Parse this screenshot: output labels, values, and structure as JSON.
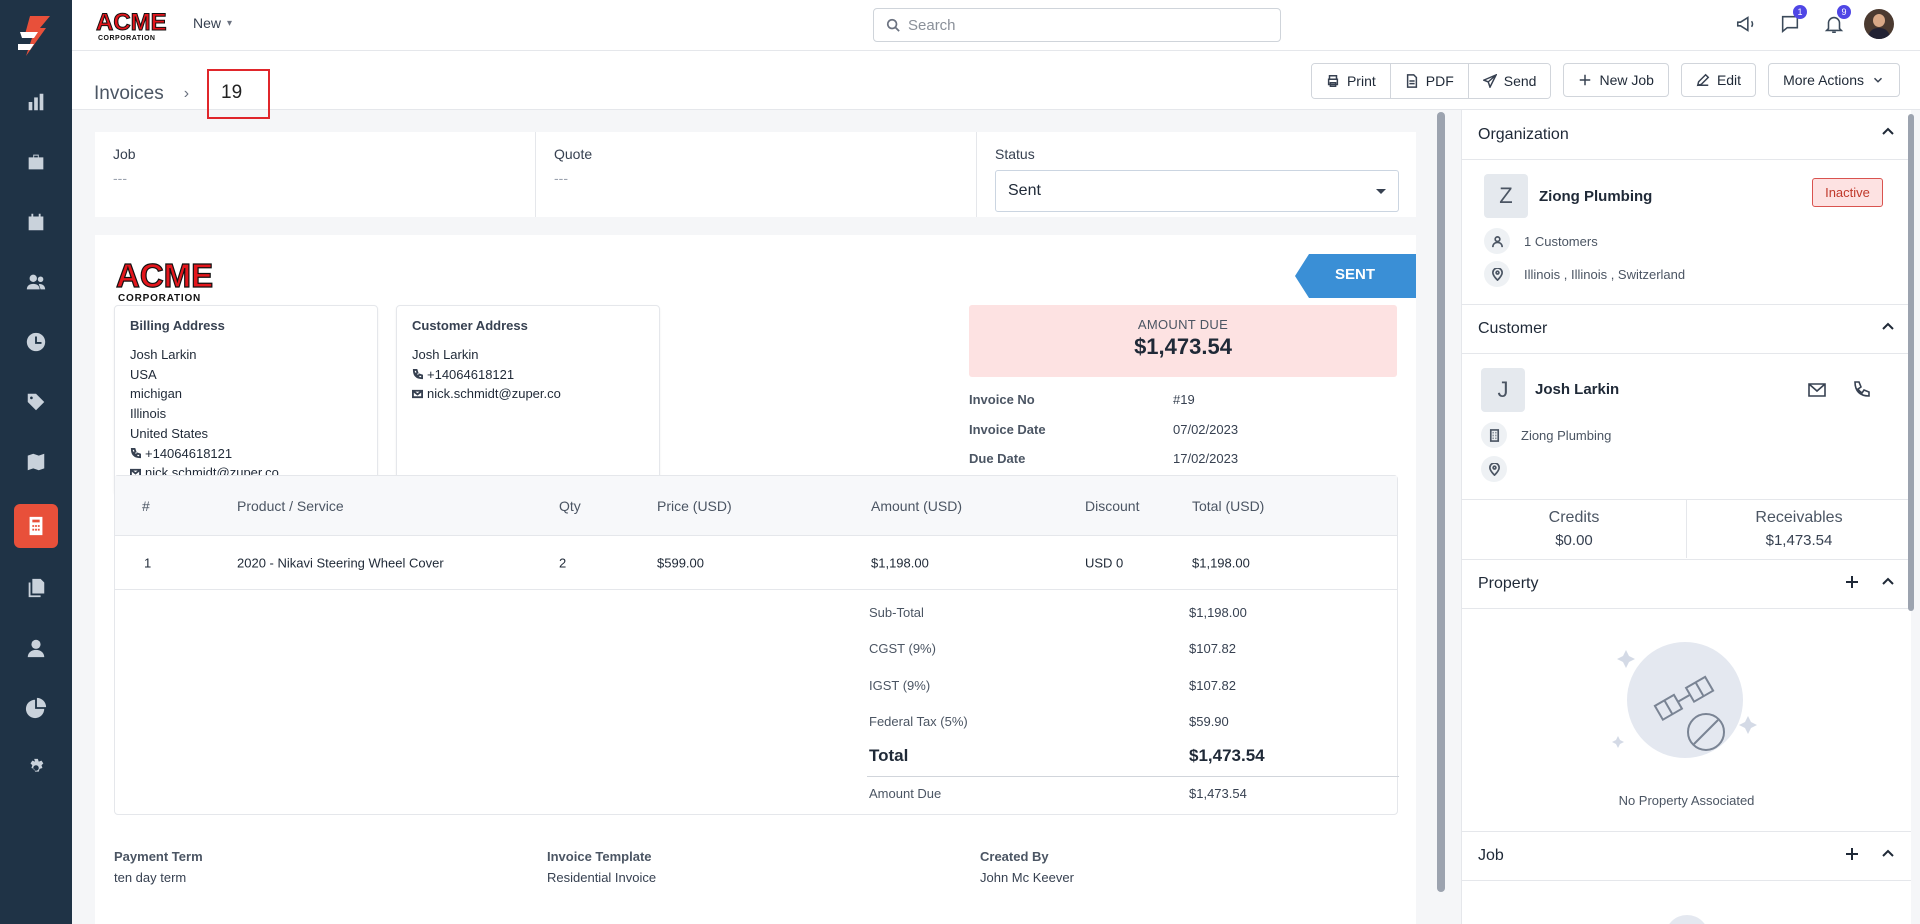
{
  "topbar": {
    "new_label": "New",
    "search_placeholder": "Search",
    "chat_badge": "1",
    "notif_badge": "9"
  },
  "breadcrumb": {
    "section": "Invoices",
    "current": "19"
  },
  "actions": {
    "print": "Print",
    "pdf": "PDF",
    "send": "Send",
    "new_job": "New Job",
    "edit": "Edit",
    "more": "More Actions"
  },
  "meta": {
    "job_label": "Job",
    "job_value": "---",
    "quote_label": "Quote",
    "quote_value": "---",
    "status_label": "Status",
    "status_value": "Sent"
  },
  "invoice": {
    "stamp": "SENT",
    "billing": {
      "title": "Billing Address",
      "lines": [
        "Josh Larkin",
        "USA",
        "michigan",
        "Illinois",
        "United States"
      ],
      "phone": "+14064618121",
      "email": "nick.schmidt@zuper.co"
    },
    "customer_address": {
      "title": "Customer Address",
      "name": "Josh Larkin",
      "phone": "+14064618121",
      "email": "nick.schmidt@zuper.co"
    },
    "amount_due_label": "AMOUNT DUE",
    "amount_due": "$1,473.54",
    "info": [
      {
        "k": "Invoice No",
        "v": "#19"
      },
      {
        "k": "Invoice Date",
        "v": "07/02/2023"
      },
      {
        "k": "Due Date",
        "v": "17/02/2023"
      }
    ],
    "columns": [
      "#",
      "Product / Service",
      "Qty",
      "Price (USD)",
      "Amount (USD)",
      "Discount",
      "Total (USD)"
    ],
    "rows": [
      {
        "num": "1",
        "product": "2020 - Nikavi Steering Wheel Cover",
        "qty": "2",
        "price": "$599.00",
        "amount": "$1,198.00",
        "discount": "USD 0",
        "total": "$1,198.00"
      }
    ],
    "totals": [
      {
        "k": "Sub-Total",
        "v": "$1,198.00"
      },
      {
        "k": "CGST (9%)",
        "v": "$107.82"
      },
      {
        "k": "IGST (9%)",
        "v": "$107.82"
      },
      {
        "k": "Federal Tax (5%)",
        "v": "$59.90"
      }
    ],
    "grand_total_label": "Total",
    "grand_total": "$1,473.54",
    "amount_due_row_label": "Amount Due",
    "amount_due_row_value": "$1,473.54",
    "footer": {
      "payment_term_label": "Payment Term",
      "payment_term": "ten day term",
      "template_label": "Invoice Template",
      "template": "Residential Invoice",
      "created_by_label": "Created By",
      "created_by": "John Mc Keever"
    }
  },
  "right": {
    "organization": {
      "title": "Organization",
      "initial": "Z",
      "name": "Ziong Plumbing",
      "status": "Inactive",
      "customers": "1 Customers",
      "location": "Illinois , Illinois , Switzerland"
    },
    "customer": {
      "title": "Customer",
      "initial": "J",
      "name": "Josh Larkin",
      "org": "Ziong Plumbing",
      "credits_label": "Credits",
      "credits": "$0.00",
      "receivables_label": "Receivables",
      "receivables": "$1,473.54"
    },
    "property": {
      "title": "Property",
      "empty": "No Property Associated"
    },
    "job": {
      "title": "Job"
    }
  },
  "icons": {
    "rail": [
      "dashboard-icon",
      "jobs-icon",
      "calendar-icon",
      "customers-icon",
      "timesheet-icon",
      "products-icon",
      "map-icon",
      "invoices-icon",
      "documents-icon",
      "user-icon",
      "reports-icon",
      "settings-icon"
    ],
    "accent": "#e8503a",
    "rail_bg": "#1f3346",
    "stamp_color": "#3a8fd6"
  }
}
